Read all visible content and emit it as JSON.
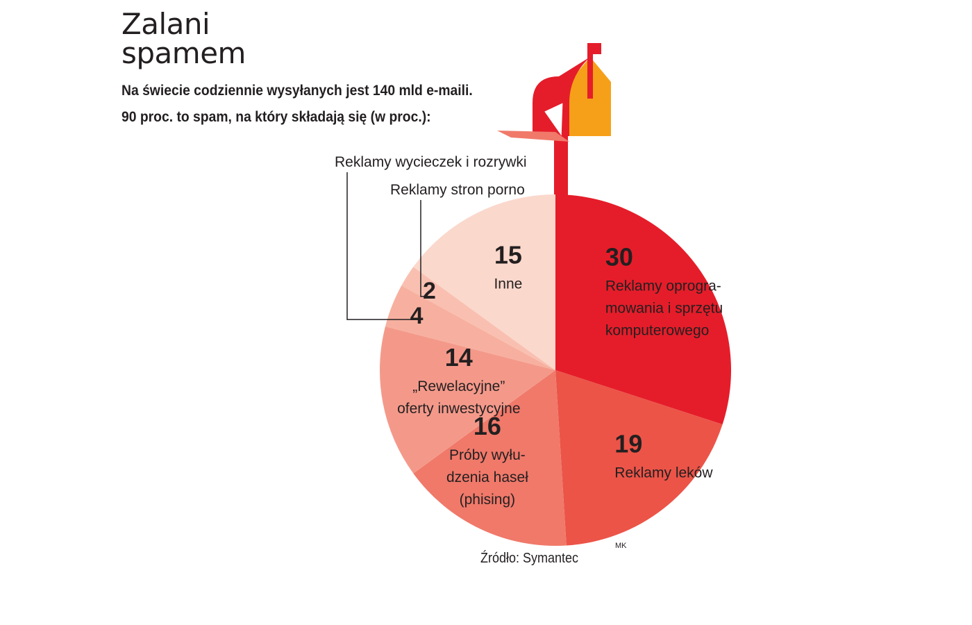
{
  "header": {
    "title_line1": "Zalani",
    "title_line2": "spamem",
    "subtitle_line1": "Na świecie codziennie wysyłanych jest 140 mld e-maili.",
    "subtitle_line2": "90 proc. to spam, na który składają się (w proc.):"
  },
  "footer": {
    "source": "Źródło: Symantec",
    "initials": "MK"
  },
  "chart_data": {
    "type": "pie",
    "unit": "%",
    "slices": [
      {
        "value": 30,
        "label_lines": [
          "Reklamy oprogra-",
          "mowania i sprzętu",
          "komputerowego"
        ],
        "color": "#e51d2a"
      },
      {
        "value": 19,
        "label_lines": [
          "Reklamy leków"
        ],
        "color": "#ec5448"
      },
      {
        "value": 16,
        "label_lines": [
          "Próby wyłu-",
          "dzenia haseł",
          "(phising)"
        ],
        "color": "#f0796a"
      },
      {
        "value": 14,
        "label_lines": [
          "„Rewelacyjne”",
          "oferty inwestycyjne"
        ],
        "color": "#f4998a"
      },
      {
        "value": 4,
        "label_lines": [],
        "callout": "Reklamy wycieczek i rozrywki",
        "color": "#f7b09f"
      },
      {
        "value": 2,
        "label_lines": [],
        "callout": "Reklamy stron porno",
        "color": "#f9c0b1"
      },
      {
        "value": 15,
        "label_lines": [
          "Inne"
        ],
        "color": "#fbd8cc"
      }
    ]
  },
  "decoration": {
    "mailbox_red": "#e51d2a",
    "mailbox_orange": "#f6a019"
  }
}
